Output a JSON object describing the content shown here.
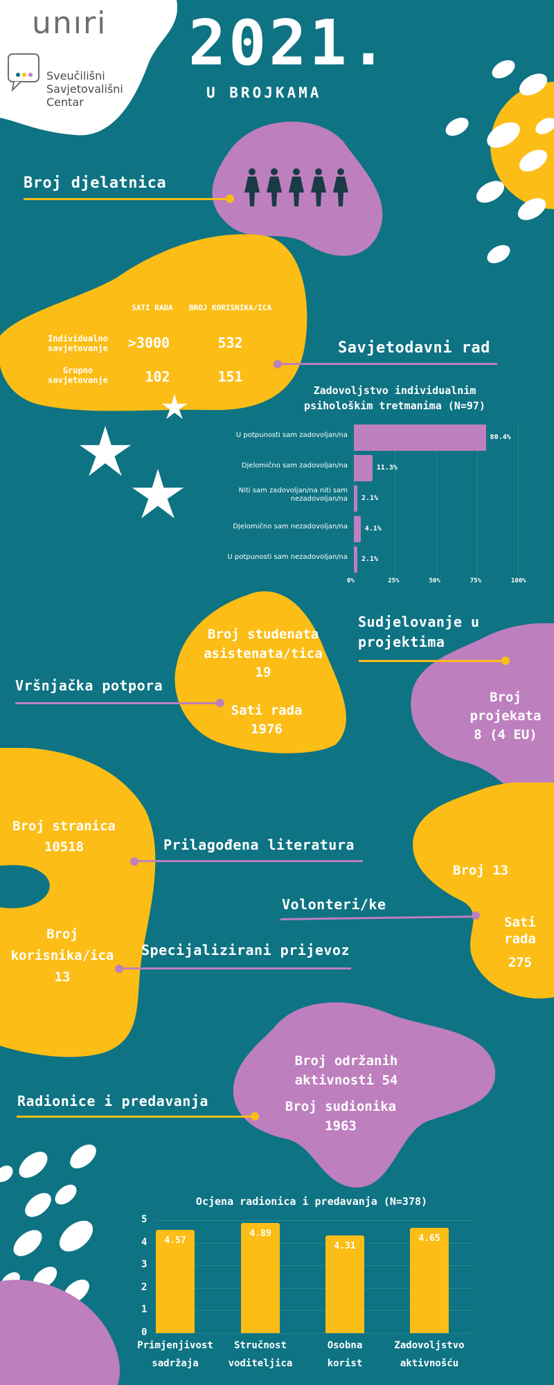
{
  "header": {
    "logo_text": "unıri",
    "org_line1": "Sveučilišni",
    "org_line2": "Savjetovališni",
    "org_line3": "Centar",
    "year": "2021.",
    "subtitle": "U BROJKAMA"
  },
  "staff": {
    "label": "Broj djelatnica",
    "count": 5
  },
  "counseling": {
    "label": "Savjetodavni rad",
    "col1_header": "SATI RADA",
    "col2_header": "BROJ KORISNIKA/ICA",
    "rows": [
      {
        "label": "Individualno savjetovanje",
        "hours": ">3000",
        "users": "532"
      },
      {
        "label": "Grupno savjetovanje",
        "hours": "102",
        "users": "151"
      }
    ]
  },
  "satisfaction_chart": {
    "chart_data": {
      "type": "bar",
      "orientation": "horizontal",
      "title": "Zadovoljstvo individualnim psihološkim tretmanima (N=97)",
      "categories": [
        "U potpunosti sam zadovoljan/na",
        "Djelomično sam zadovoljan/na",
        "Niti sam zadovoljan/na niti sam nezadovoljan/na",
        "Djelomično sam nezadovoljan/na",
        "U potpunosti sam nezadovoljan/na"
      ],
      "values": [
        80.4,
        11.3,
        2.1,
        4.1,
        2.1
      ],
      "value_labels": [
        "80.4%",
        "11.3%",
        "2.1%",
        "4.1%",
        "2.1%"
      ],
      "xlim": [
        0,
        100
      ],
      "ticks": [
        "0%",
        "25%",
        "50%",
        "75%",
        "100%"
      ],
      "color": "#be7fbe"
    }
  },
  "peer_support": {
    "label": "Vršnjačka potpora",
    "students_label": "Broj studenata asistenata/tica",
    "students_value": "19",
    "hours_label": "Sati rada",
    "hours_value": "1976"
  },
  "projects": {
    "label_line1": "Sudjelovanje u",
    "label_line2": "projektima",
    "count_label_line1": "Broj",
    "count_label_line2": "projekata",
    "count_value": "8 (4 EU)"
  },
  "literature": {
    "label": "Prilagođena literatura",
    "pages_label": "Broj stranica",
    "pages_value": "10518"
  },
  "volunteers": {
    "label": "Volonteri/ke",
    "count_label": "Broj 13",
    "hours_label_line1": "Sati",
    "hours_label_line2": "rada",
    "hours_value": "275"
  },
  "transport": {
    "label": "Specijalizirani prijevoz",
    "users_label_line1": "Broj",
    "users_label_line2": "korisnika/ica",
    "users_value": "13"
  },
  "workshops": {
    "label": "Radionice i predavanja",
    "activities_line1": "Broj održanih",
    "activities_line2": "aktivnosti 54",
    "participants_label": "Broj sudionika",
    "participants_value": "1963"
  },
  "rating_chart": {
    "chart_data": {
      "type": "bar",
      "orientation": "vertical",
      "title": "Ocjena radionica i predavanja (N=378)",
      "categories": [
        [
          "Primjenjivost",
          "sadržaja"
        ],
        [
          "Stručnost",
          "voditeljica"
        ],
        [
          "Osobna",
          "korist"
        ],
        [
          "Zadovoljstvo",
          "aktivnošću"
        ]
      ],
      "values": [
        4.57,
        4.89,
        4.31,
        4.65
      ],
      "value_labels": [
        "4.57",
        "4.89",
        "4.31",
        "4.65"
      ],
      "ylim": [
        0,
        5
      ],
      "yticks": [
        "0",
        "1",
        "2",
        "3",
        "4",
        "5"
      ],
      "color": "#fbbd16"
    }
  },
  "colors": {
    "background": "#0e7383",
    "yellow": "#fbbd16",
    "purple": "#be7fbe"
  }
}
